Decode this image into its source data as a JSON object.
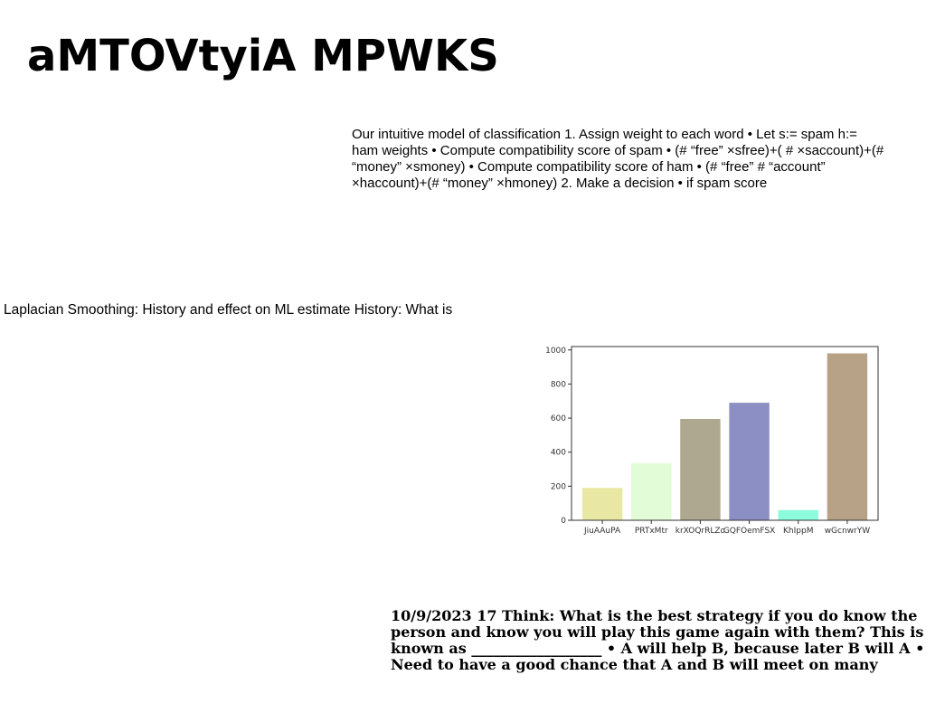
{
  "slide": {
    "title": "aMTOVtyiA MPWKS"
  },
  "blocks": {
    "classification": "Our intuitive model of classification 1. Assign weight to each word • Let s:= spam h:= ham weights • Compute compatibility score of spam • (# “free” ×sfree)+( # ×saccount)+(# “money” ×smoney) • Compute compatibility score of ham • (# “free” # “account” ×haccount)+(# “money” ×hmoney) 2. Make a decision • if spam score",
    "laplacian": "Laplacian Smoothing: History and effect on ML estimate History: What is",
    "game": "10/9/2023 17 Think: What is the best strategy if you do know the person and know you will play this game again with them? This is known as __________________ • A will help B, because later B will A • Need to have a good chance that A and B will meet on many"
  },
  "chart_data": {
    "type": "bar",
    "categories": [
      "JiuAAuPA",
      "PRTxMtr",
      "krXOQrRLZo",
      "GQFOemFSX",
      "KhIppM",
      "wGcnwrYW"
    ],
    "values": [
      190,
      335,
      595,
      690,
      60,
      980
    ],
    "colors": [
      "#e8e8a4",
      "#e2fcd8",
      "#afa891",
      "#8c8fc4",
      "#8cfcdc",
      "#b8a287"
    ],
    "ylim": [
      0,
      1020
    ],
    "yticks": [
      0,
      200,
      400,
      600,
      800,
      1000
    ],
    "title": "",
    "xlabel": "",
    "ylabel": ""
  }
}
